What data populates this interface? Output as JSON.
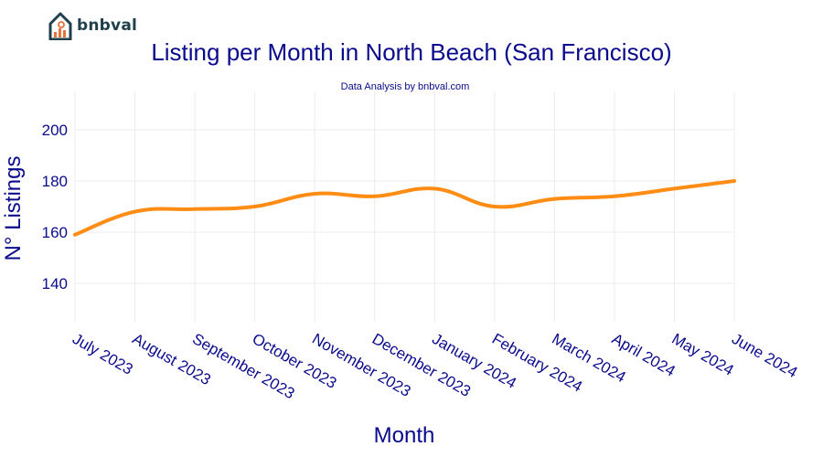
{
  "brand": {
    "name": "bnbval",
    "logo_icon": "house-chart-icon",
    "logo_color": "#1f3f4c",
    "logo_accent": "#e8733a"
  },
  "chart_data": {
    "type": "line",
    "title": "Listing per Month in North Beach (San Francisco)",
    "subtitle": "Data Analysis by bnbval.com",
    "xlabel": "Month",
    "ylabel": "N° Listings",
    "categories": [
      "July 2023",
      "August 2023",
      "September 2023",
      "October 2023",
      "November 2023",
      "December 2023",
      "January 2024",
      "February 2024",
      "March 2024",
      "April 2024",
      "May 2024",
      "June 2024"
    ],
    "series": [
      {
        "values": [
          159,
          168,
          169,
          170,
          175,
          174,
          177,
          170,
          173,
          174,
          177,
          180
        ],
        "color": "#ff8c14"
      }
    ],
    "ylim": [
      125,
      215
    ],
    "yticks": [
      140,
      160,
      180,
      200
    ],
    "grid": true,
    "text_color": "#0a0a8c",
    "grid_color": "#ececec"
  }
}
